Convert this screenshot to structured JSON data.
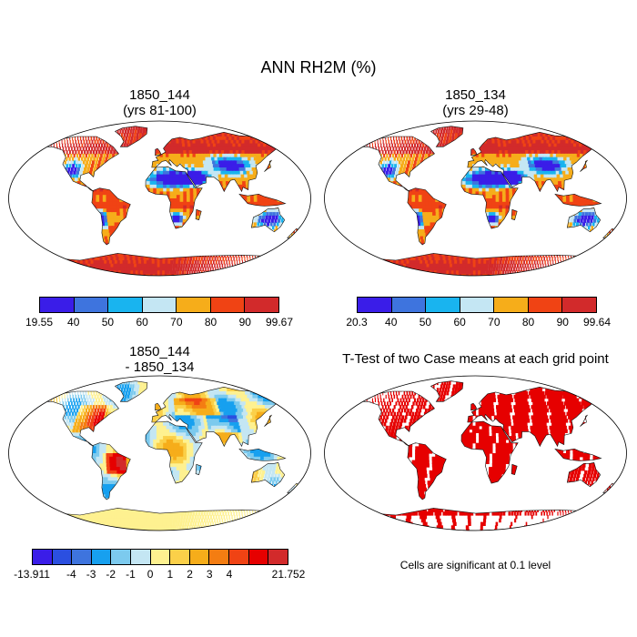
{
  "title": "ANN RH2M (%)",
  "panels": [
    {
      "title_line1": "1850_144",
      "title_line2": "(yrs 81-100)",
      "colorbar": {
        "colors": [
          "#3a1de8",
          "#3e74de",
          "#19b4ef",
          "#c4e6f3",
          "#f6ad1a",
          "#f04314",
          "#d22a2b"
        ],
        "labels": [
          "19.55",
          "40",
          "50",
          "60",
          "70",
          "80",
          "90",
          "99.67"
        ]
      }
    },
    {
      "title_line1": "1850_134",
      "title_line2": "(yrs 29-48)",
      "colorbar": {
        "colors": [
          "#3a1de8",
          "#3e74de",
          "#19b4ef",
          "#c4e6f3",
          "#f6ad1a",
          "#f04314",
          "#d22a2b"
        ],
        "labels": [
          "20.3",
          "40",
          "50",
          "60",
          "70",
          "80",
          "90",
          "99.64"
        ]
      }
    },
    {
      "title_line1": "1850_144",
      "title_line2": "- 1850_134",
      "colorbar": {
        "colors": [
          "#3a1de8",
          "#2b4fe0",
          "#3e74de",
          "#17a0ef",
          "#7ccaee",
          "#c4e6f3",
          "#fef190",
          "#fbd049",
          "#f6ad1a",
          "#f47d12",
          "#f04314",
          "#e60000",
          "#d22a2b"
        ],
        "labels": [
          "-13.911",
          "-4",
          "-3",
          "-2",
          "-1",
          "0",
          "1",
          "2",
          "3",
          "4",
          "21.752"
        ],
        "label_positions": [
          0,
          2,
          3,
          4,
          5,
          6,
          7,
          8,
          9,
          10,
          13
        ]
      }
    },
    {
      "title_line1": "T-Test of two Case means at each grid point",
      "note": "Cells are significant at 0.1 level",
      "sig_color": "#e60000"
    }
  ]
}
